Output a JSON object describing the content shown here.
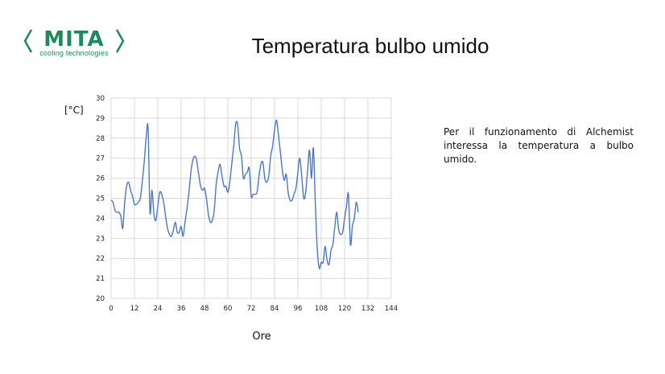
{
  "slide": {
    "title": "Temperatura bulbo umido",
    "note": "Per il funzionamento di Alchemist interessa la temperatura a bulbo umido."
  },
  "logo": {
    "word": "MITA",
    "tagline": "cooling technologies",
    "color": "#1e8a5b"
  },
  "chart_data": {
    "type": "line",
    "title": "",
    "xlabel": "Ore",
    "ylabel": "[°C]",
    "xlim": [
      0,
      144
    ],
    "ylim": [
      20,
      30
    ],
    "xticks": [
      0,
      12,
      24,
      36,
      48,
      60,
      72,
      84,
      96,
      108,
      120,
      132,
      144
    ],
    "yticks": [
      20,
      21,
      22,
      23,
      24,
      25,
      26,
      27,
      28,
      29,
      30
    ],
    "grid": "vertical and horizontal",
    "line_color": "#4a78c8",
    "series": [
      {
        "values": [
          [
            0,
            24.9
          ],
          [
            1,
            24.8
          ],
          [
            2,
            24.4
          ],
          [
            3,
            24.3
          ],
          [
            4,
            24.3
          ],
          [
            5,
            24.1
          ],
          [
            6,
            23.5
          ],
          [
            7,
            24.8
          ],
          [
            8,
            25.6
          ],
          [
            9,
            25.8
          ],
          [
            10,
            25.4
          ],
          [
            11,
            25.1
          ],
          [
            12,
            24.7
          ],
          [
            13,
            24.7
          ],
          [
            14,
            24.8
          ],
          [
            15,
            25.0
          ],
          [
            16,
            25.8
          ],
          [
            17,
            26.8
          ],
          [
            18,
            28.0
          ],
          [
            19,
            28.5
          ],
          [
            20,
            24.3
          ],
          [
            21,
            25.4
          ],
          [
            22,
            24.2
          ],
          [
            23,
            23.9
          ],
          [
            24,
            24.6
          ],
          [
            25,
            25.3
          ],
          [
            26,
            25.2
          ],
          [
            27,
            24.8
          ],
          [
            28,
            24.1
          ],
          [
            29,
            23.5
          ],
          [
            30,
            23.2
          ],
          [
            31,
            23.1
          ],
          [
            32,
            23.4
          ],
          [
            33,
            23.8
          ],
          [
            34,
            23.3
          ],
          [
            35,
            23.3
          ],
          [
            36,
            23.6
          ],
          [
            37,
            23.1
          ],
          [
            38,
            23.8
          ],
          [
            39,
            24.5
          ],
          [
            40,
            25.3
          ],
          [
            41,
            26.3
          ],
          [
            42,
            26.9
          ],
          [
            43,
            27.1
          ],
          [
            44,
            26.9
          ],
          [
            45,
            26.2
          ],
          [
            46,
            25.6
          ],
          [
            47,
            25.4
          ],
          [
            48,
            25.5
          ],
          [
            49,
            25.0
          ],
          [
            50,
            24.2
          ],
          [
            51,
            23.8
          ],
          [
            52,
            23.9
          ],
          [
            53,
            24.4
          ],
          [
            54,
            25.7
          ],
          [
            55,
            26.3
          ],
          [
            56,
            26.7
          ],
          [
            57,
            26.1
          ],
          [
            58,
            25.6
          ],
          [
            59,
            25.6
          ],
          [
            60,
            25.3
          ],
          [
            61,
            25.8
          ],
          [
            62,
            26.7
          ],
          [
            63,
            27.6
          ],
          [
            64,
            28.7
          ],
          [
            65,
            28.7
          ],
          [
            66,
            27.5
          ],
          [
            67,
            27.1
          ],
          [
            68,
            26.0
          ],
          [
            69,
            26.2
          ],
          [
            70,
            26.3
          ],
          [
            71,
            26.5
          ],
          [
            72,
            25.1
          ],
          [
            73,
            25.2
          ],
          [
            74,
            25.2
          ],
          [
            75,
            25.3
          ],
          [
            76,
            26.1
          ],
          [
            77,
            26.7
          ],
          [
            78,
            26.8
          ],
          [
            79,
            26.0
          ],
          [
            80,
            25.8
          ],
          [
            81,
            26.1
          ],
          [
            82,
            27.1
          ],
          [
            83,
            27.6
          ],
          [
            84,
            28.4
          ],
          [
            85,
            28.9
          ],
          [
            86,
            28.2
          ],
          [
            87,
            27.3
          ],
          [
            88,
            26.4
          ],
          [
            89,
            25.9
          ],
          [
            90,
            26.2
          ],
          [
            91,
            25.3
          ],
          [
            92,
            24.9
          ],
          [
            93,
            24.9
          ],
          [
            94,
            25.2
          ],
          [
            95,
            25.5
          ],
          [
            96,
            26.3
          ],
          [
            97,
            27.0
          ],
          [
            98,
            26.1
          ],
          [
            99,
            25.0
          ],
          [
            100,
            25.3
          ],
          [
            101,
            26.4
          ],
          [
            102,
            27.4
          ],
          [
            103,
            26.0
          ],
          [
            104,
            27.5
          ],
          [
            105,
            24.6
          ],
          [
            106,
            22.4
          ],
          [
            107,
            21.5
          ],
          [
            108,
            21.8
          ],
          [
            109,
            21.8
          ],
          [
            110,
            22.6
          ],
          [
            111,
            21.9
          ],
          [
            112,
            21.7
          ],
          [
            113,
            22.4
          ],
          [
            114,
            22.7
          ],
          [
            115,
            23.6
          ],
          [
            116,
            24.3
          ],
          [
            117,
            23.4
          ],
          [
            118,
            23.2
          ],
          [
            119,
            23.3
          ],
          [
            120,
            24.0
          ],
          [
            121,
            24.6
          ],
          [
            122,
            25.2
          ],
          [
            123,
            22.7
          ],
          [
            124,
            23.6
          ],
          [
            125,
            24.0
          ],
          [
            126,
            24.8
          ],
          [
            127,
            24.3
          ]
        ]
      }
    ]
  }
}
